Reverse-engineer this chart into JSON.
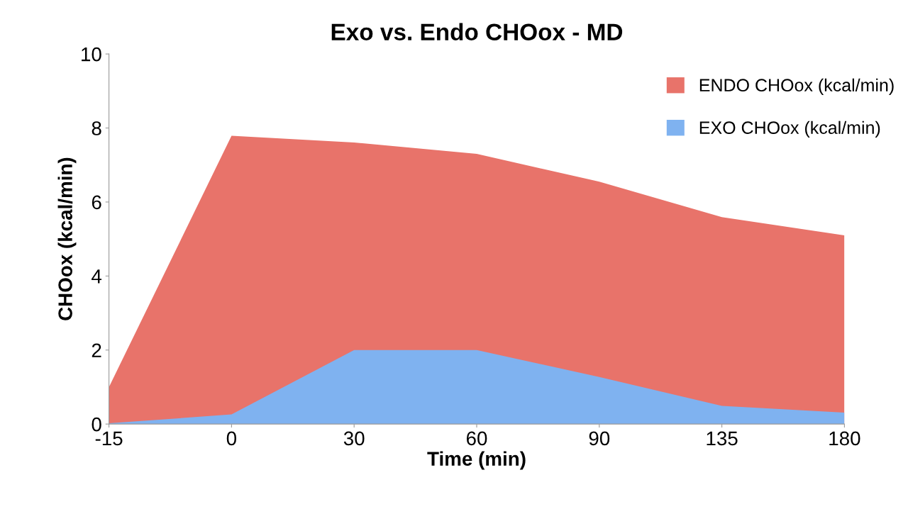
{
  "chart_data": {
    "type": "area",
    "title": "Exo vs. Endo CHOox - MD",
    "xlabel": "Time (min)",
    "ylabel": "CHOox (kcal/min)",
    "categories": [
      "-15",
      "0",
      "30",
      "60",
      "90",
      "135",
      "180"
    ],
    "series": [
      {
        "name": "ENDO CHOox (kcal/min)",
        "color": "#e8736a",
        "values": [
          1.0,
          7.79,
          7.61,
          7.3,
          6.55,
          5.59,
          5.1
        ]
      },
      {
        "name": "EXO CHOox (kcal/min)",
        "color": "#7fb2f0",
        "values": [
          0.02,
          0.26,
          2.0,
          2.0,
          1.27,
          0.49,
          0.31
        ]
      }
    ],
    "ylim": [
      0,
      10
    ],
    "yticks": [
      0,
      2,
      4,
      6,
      8,
      10
    ],
    "grid": false,
    "legend": "top right"
  }
}
